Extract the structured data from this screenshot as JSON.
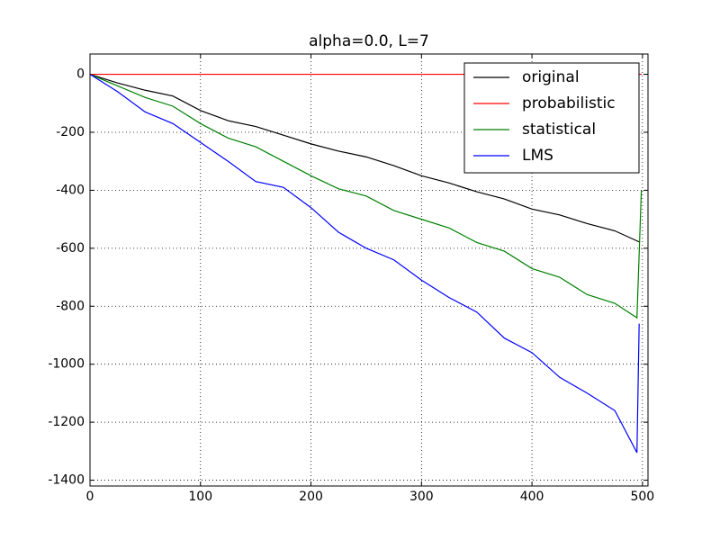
{
  "chart_data": {
    "type": "line",
    "title": "alpha=0.0, L=7",
    "xlim": [
      0,
      505
    ],
    "ylim": [
      -1420,
      70
    ],
    "xticks": [
      0,
      100,
      200,
      300,
      400,
      500
    ],
    "yticks": [
      0,
      -200,
      -400,
      -600,
      -800,
      -1000,
      -1200,
      -1400
    ],
    "grid": true,
    "legend": "upper right",
    "series": [
      {
        "name": "original",
        "color": "#000000",
        "x": [
          0,
          25,
          50,
          75,
          100,
          125,
          150,
          175,
          200,
          225,
          250,
          275,
          300,
          325,
          350,
          375,
          400,
          425,
          450,
          475,
          497
        ],
        "values": [
          0,
          -30,
          -55,
          -75,
          -125,
          -160,
          -180,
          -210,
          -240,
          -265,
          -285,
          -315,
          -350,
          -375,
          -405,
          -430,
          -465,
          -485,
          -515,
          -540,
          -578
        ]
      },
      {
        "name": "probabilistic",
        "color": "#ff0000",
        "x": [
          0,
          499
        ],
        "values": [
          0,
          0
        ]
      },
      {
        "name": "statistical",
        "color": "#008000",
        "x": [
          0,
          25,
          50,
          75,
          100,
          125,
          150,
          175,
          200,
          225,
          250,
          275,
          300,
          325,
          350,
          375,
          400,
          425,
          450,
          475,
          495,
          499
        ],
        "values": [
          0,
          -40,
          -80,
          -110,
          -170,
          -220,
          -250,
          -300,
          -350,
          -395,
          -420,
          -470,
          -500,
          -530,
          -580,
          -610,
          -670,
          -700,
          -760,
          -790,
          -840,
          -400
        ]
      },
      {
        "name": "LMS",
        "color": "#0000ff",
        "x": [
          0,
          25,
          50,
          75,
          100,
          125,
          150,
          175,
          200,
          225,
          250,
          275,
          300,
          325,
          350,
          375,
          400,
          425,
          450,
          475,
          495,
          497
        ],
        "values": [
          0,
          -60,
          -130,
          -170,
          -235,
          -300,
          -370,
          -390,
          -460,
          -545,
          -600,
          -640,
          -710,
          -770,
          -820,
          -910,
          -960,
          -1045,
          -1100,
          -1160,
          -1305,
          -860
        ]
      }
    ]
  }
}
